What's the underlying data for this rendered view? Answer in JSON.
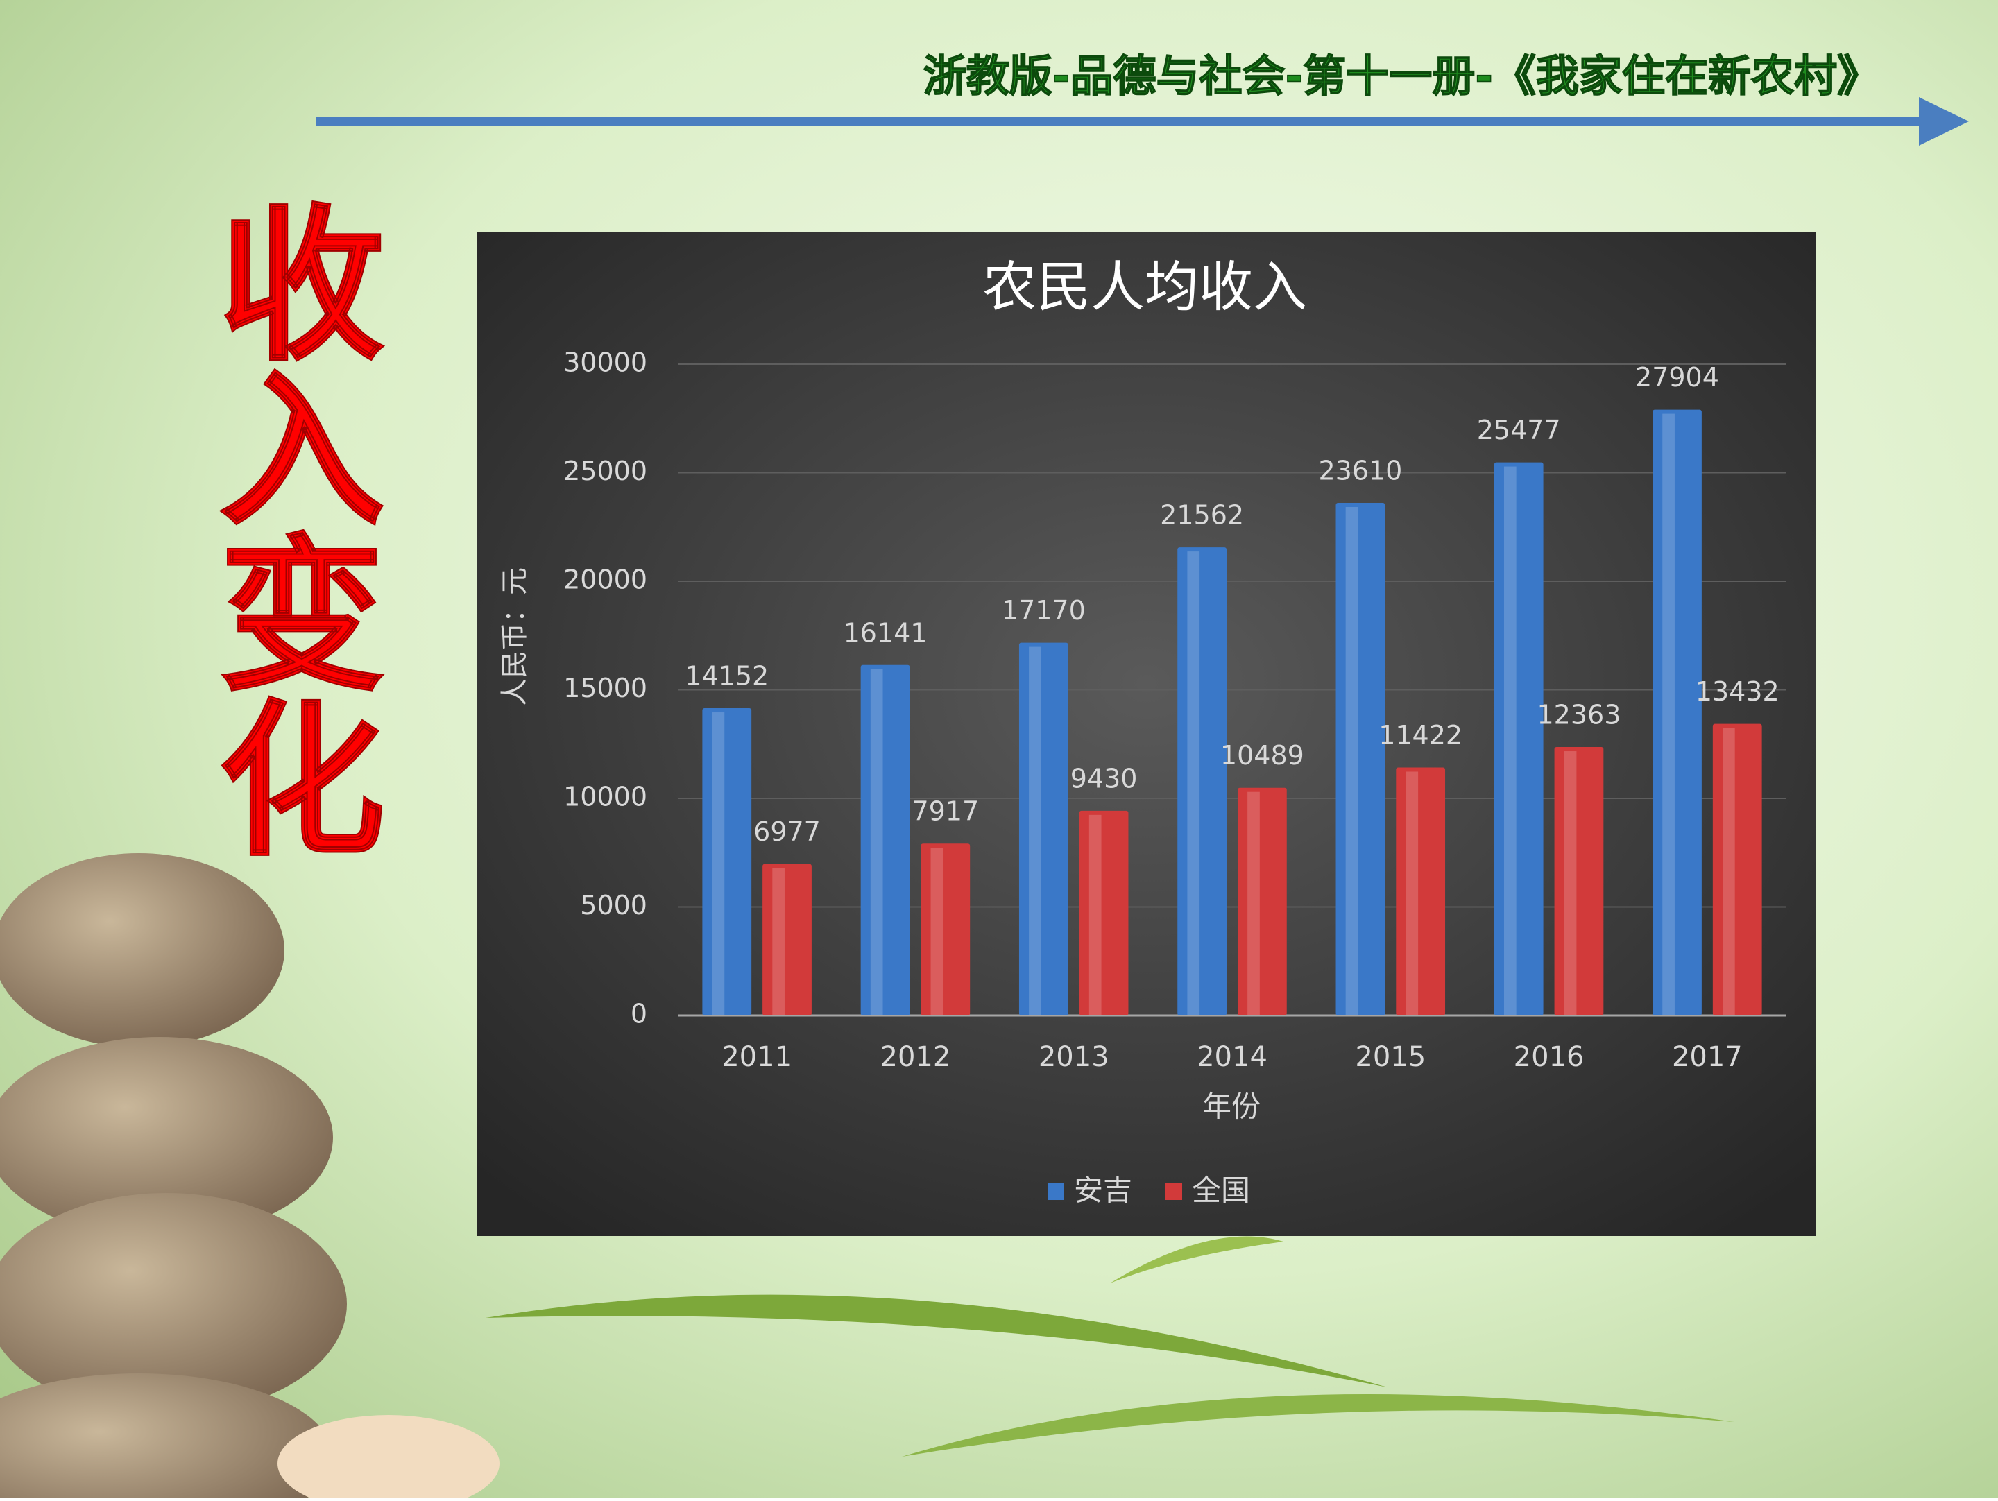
{
  "slide": {
    "header": "浙教版-品德与社会-第十一册-《我家住在新农村》",
    "side_title": "收入变化"
  },
  "chart_data": {
    "type": "bar",
    "title": "农民人均收入",
    "x_label": "年份",
    "y_label": "人民币：元",
    "categories": [
      "2011",
      "2012",
      "2013",
      "2014",
      "2015",
      "2016",
      "2017"
    ],
    "series": [
      {
        "name": "安吉",
        "color": "#3a78c8",
        "values": [
          14152,
          16141,
          17170,
          21562,
          23610,
          25477,
          27904
        ]
      },
      {
        "name": "全国",
        "color": "#d23a3a",
        "values": [
          6977,
          7917,
          9430,
          10489,
          11422,
          12363,
          13432
        ]
      }
    ],
    "ylim": [
      0,
      30000
    ],
    "yticks": [
      0,
      5000,
      10000,
      15000,
      20000,
      25000,
      30000
    ],
    "grid": true,
    "legend": "bottom"
  }
}
